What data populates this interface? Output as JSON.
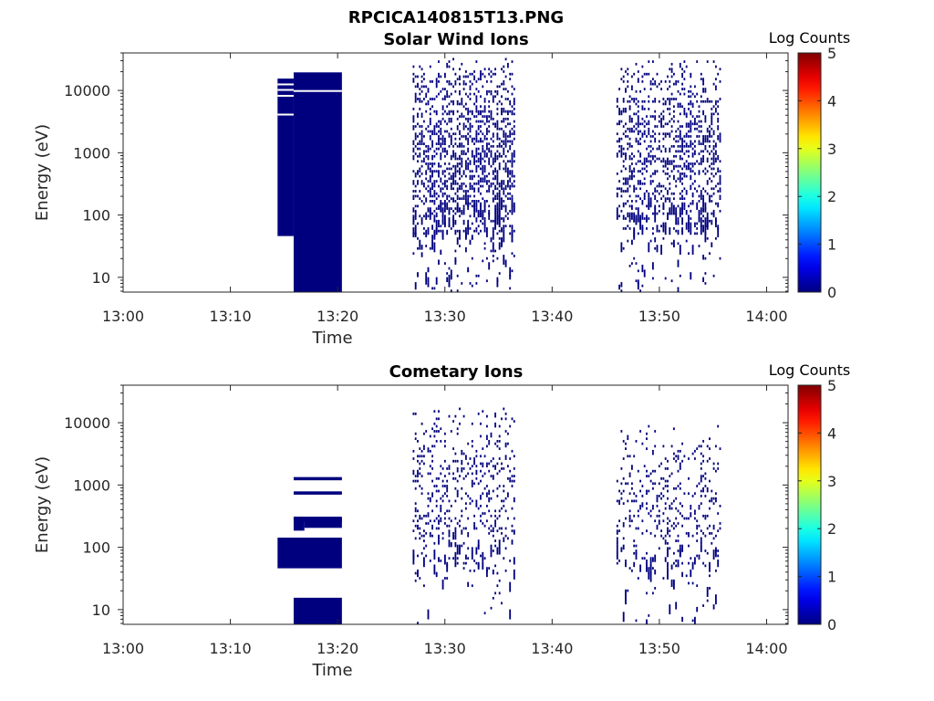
{
  "figure_title": "RPCICA140815T13.PNG",
  "colors": {
    "count": "#00007f",
    "axis": "#262626",
    "background": "#ffffff"
  },
  "colorbar": {
    "label": "Log Counts",
    "range": [
      0,
      5
    ],
    "ticks": [
      "0",
      "1",
      "2",
      "3",
      "4",
      "5"
    ],
    "colormap": "jet"
  },
  "chart_data": [
    {
      "type": "heatmap",
      "title": "Solar Wind Ions",
      "xlabel": "Time",
      "ylabel": "Energy (eV)",
      "x_unit": "minutes after 13:00",
      "xlim": [
        0,
        62
      ],
      "ylim": [
        5.8,
        40000
      ],
      "yscale": "log",
      "xticks": [
        0,
        10,
        20,
        30,
        40,
        50,
        60
      ],
      "xtick_labels": [
        "13:00",
        "13:10",
        "13:20",
        "13:30",
        "13:40",
        "13:50",
        "14:00"
      ],
      "yticks": [
        10,
        100,
        1000,
        10000
      ],
      "ytick_labels": [
        "10",
        "100",
        "1000",
        "10000"
      ],
      "log_count_level": 0,
      "blocks": [
        {
          "t": [
            14.4,
            15.9
          ],
          "e": [
            46,
            15500
          ]
        },
        {
          "t": [
            15.9,
            20.4
          ],
          "e": [
            5.8,
            19500
          ]
        }
      ],
      "gaps": [
        {
          "t": [
            14.4,
            15.9
          ],
          "e": 17000
        },
        {
          "t": [
            14.4,
            15.9
          ],
          "e": 12500
        },
        {
          "t": [
            14.4,
            15.9
          ],
          "e": 10200
        },
        {
          "t": [
            15.9,
            20.4
          ],
          "e": 9800
        },
        {
          "t": [
            14.4,
            15.9
          ],
          "e": 8200
        },
        {
          "t": [
            14.4,
            15.9
          ],
          "e": 4100
        }
      ],
      "scatter_bursts": [
        {
          "t": [
            27.0,
            36.6
          ],
          "e_max": 35000,
          "density": 0.38,
          "seed": 11
        },
        {
          "t": [
            46.0,
            55.8
          ],
          "e_max": 32000,
          "density": 0.3,
          "seed": 29
        }
      ]
    },
    {
      "type": "heatmap",
      "title": "Cometary Ions",
      "xlabel": "Time",
      "ylabel": "Energy (eV)",
      "x_unit": "minutes after 13:00",
      "xlim": [
        0,
        62
      ],
      "ylim": [
        5.8,
        40000
      ],
      "yscale": "log",
      "xticks": [
        0,
        10,
        20,
        30,
        40,
        50,
        60
      ],
      "xtick_labels": [
        "13:00",
        "13:10",
        "13:20",
        "13:30",
        "13:40",
        "13:50",
        "14:00"
      ],
      "yticks": [
        10,
        100,
        1000,
        10000
      ],
      "ytick_labels": [
        "10",
        "100",
        "1000",
        "10000"
      ],
      "log_count_level": 0,
      "blocks": [
        {
          "t": [
            15.9,
            20.4
          ],
          "e": [
            5.8,
            15.5
          ]
        },
        {
          "t": [
            14.4,
            20.4
          ],
          "e": [
            46,
            143
          ]
        },
        {
          "t": [
            16.9,
            20.4
          ],
          "e": [
            205,
            290
          ]
        },
        {
          "t": [
            15.9,
            16.9
          ],
          "e": [
            185,
            310
          ]
        },
        {
          "t": [
            15.9,
            20.4
          ],
          "e": [
            255,
            310
          ]
        },
        {
          "t": [
            15.9,
            20.4
          ],
          "e": [
            700,
            790
          ]
        },
        {
          "t": [
            15.9,
            20.4
          ],
          "e": [
            1190,
            1340
          ]
        }
      ],
      "gaps": [],
      "scatter_bursts": [
        {
          "t": [
            27.0,
            36.6
          ],
          "e_max": 18000,
          "density": 0.16,
          "seed": 47
        },
        {
          "t": [
            46.0,
            55.8
          ],
          "e_max": 10000,
          "density": 0.14,
          "seed": 83
        }
      ]
    }
  ]
}
